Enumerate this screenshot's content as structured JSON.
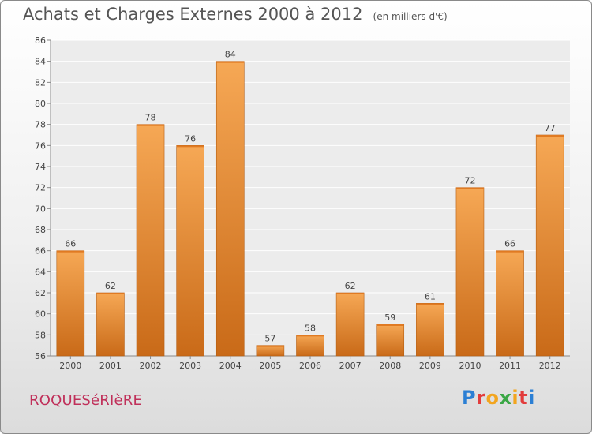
{
  "header": {
    "title": "Achats et Charges Externes 2000 à 2012",
    "subtitle": "(en milliers d'€)"
  },
  "footer": {
    "commune": "ROQUESéRIèRE",
    "logo_letters": [
      "P",
      "r",
      "o",
      "x",
      "i",
      "t",
      "i"
    ],
    "logo_colors": [
      "#2b7fd4",
      "#e23c3c",
      "#f2a51f",
      "#3aa745",
      "#f2a51f",
      "#e23c3c",
      "#2b7fd4"
    ]
  },
  "chart_data": {
    "type": "bar",
    "title": "Achats et Charges Externes 2000 à 2012",
    "subtitle": "(en milliers d'€)",
    "categories": [
      "2000",
      "2001",
      "2002",
      "2003",
      "2004",
      "2005",
      "2006",
      "2007",
      "2008",
      "2009",
      "2010",
      "2011",
      "2012"
    ],
    "values": [
      66,
      62,
      78,
      76,
      84,
      57,
      58,
      62,
      59,
      61,
      72,
      66,
      77
    ],
    "ylim": [
      56,
      86
    ],
    "yticks": [
      "56",
      "58",
      "60",
      "62",
      "64",
      "66",
      "68",
      "70",
      "72",
      "74",
      "76",
      "78",
      "80",
      "82",
      "84",
      "86"
    ],
    "grid": true,
    "bar_color_top": "#f6a855",
    "bar_color_bottom": "#c96a18"
  }
}
